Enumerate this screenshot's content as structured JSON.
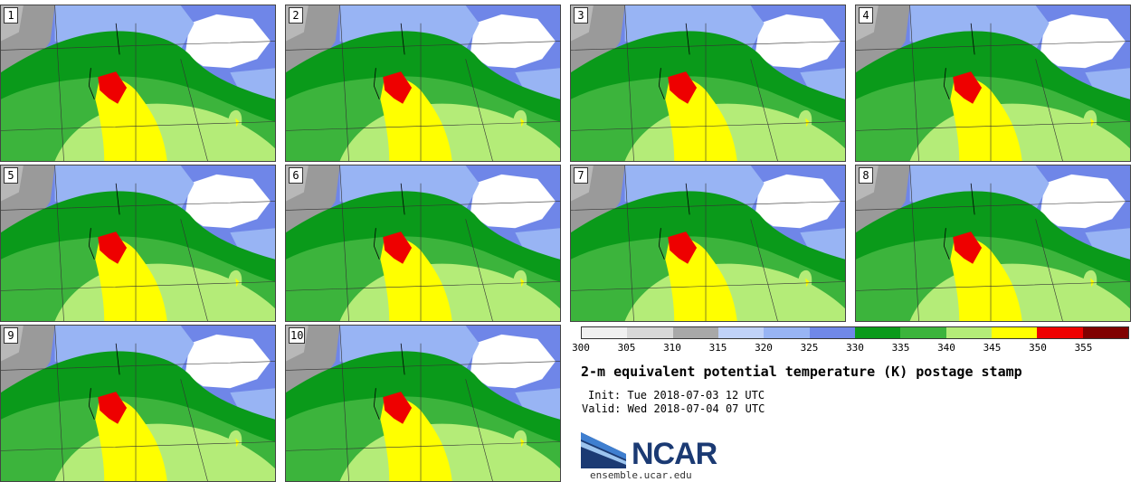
{
  "panels": [
    {
      "label": "1"
    },
    {
      "label": "2"
    },
    {
      "label": "3"
    },
    {
      "label": "4"
    },
    {
      "label": "5"
    },
    {
      "label": "6"
    },
    {
      "label": "7"
    },
    {
      "label": "8"
    },
    {
      "label": "9"
    },
    {
      "label": "10"
    }
  ],
  "colorbar": {
    "ticks": [
      "300",
      "305",
      "310",
      "315",
      "320",
      "325",
      "330",
      "335",
      "340",
      "345",
      "350",
      "355"
    ],
    "colors": [
      "#f0f0f0",
      "#d8d8d8",
      "#a8a8a8",
      "#c0d2f8",
      "#98b4f4",
      "#7088e8",
      "#0a9a1a",
      "#3cb43c",
      "#b4ec78",
      "#ffff00",
      "#ee0000",
      "#800000"
    ]
  },
  "title": "2-m equivalent potential temperature (K) postage stamp",
  "init_line": "Init: Tue 2018-07-03 12 UTC",
  "valid_line": "Valid: Wed 2018-07-04 07 UTC",
  "logo": {
    "text": "NCAR",
    "url": "ensemble.ucar.edu"
  }
}
